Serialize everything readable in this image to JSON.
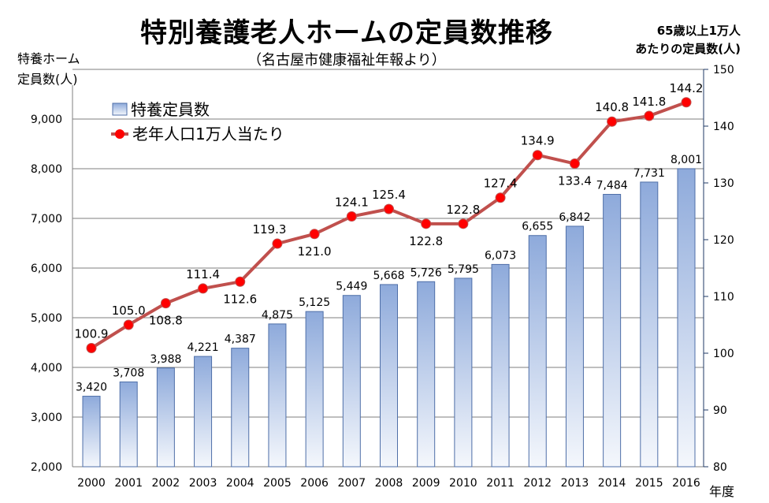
{
  "chart_data": {
    "type": "bar+line",
    "title": "特別養護老人ホームの定員数推移",
    "subtitle": "（名古屋市健康福祉年報より）",
    "ylabel_left": [
      "特養ホーム",
      "定員数(人)"
    ],
    "ylabel_right": [
      "65歳以上1万人",
      "あたりの定員数(人)"
    ],
    "xlabel": "年度",
    "categories": [
      "2000",
      "2001",
      "2002",
      "2003",
      "2004",
      "2005",
      "2006",
      "2007",
      "2008",
      "2009",
      "2010",
      "2011",
      "2012",
      "2013",
      "2014",
      "2015",
      "2016"
    ],
    "series": [
      {
        "name": "特養定員数",
        "type": "bar",
        "axis": "left",
        "values": [
          3420,
          3708,
          3988,
          4221,
          4387,
          4875,
          5125,
          5449,
          5668,
          5726,
          5795,
          6073,
          6655,
          6842,
          7484,
          7731,
          8001
        ],
        "labels": [
          "3,420",
          "3,708",
          "3,988",
          "4,221",
          "4,387",
          "4,875",
          "5,125",
          "5,449",
          "5,668",
          "5,726",
          "5,795",
          "6,073",
          "6,655",
          "6,842",
          "7,484",
          "7,731",
          "8,001"
        ]
      },
      {
        "name": "老年人口1万人当たり",
        "type": "line",
        "axis": "right",
        "values": [
          100.9,
          105.0,
          108.8,
          111.4,
          112.6,
          119.3,
          121.0,
          124.1,
          125.4,
          122.8,
          122.8,
          127.4,
          134.9,
          133.4,
          140.8,
          141.8,
          144.2
        ],
        "labels": [
          "100.9",
          "105.0",
          "108.8",
          "111.4",
          "112.6",
          "119.3",
          "121.0",
          "124.1",
          "125.4",
          "122.8",
          "122.8",
          "127.4",
          "134.9",
          "133.4",
          "140.8",
          "141.8",
          "144.2"
        ]
      }
    ],
    "ylim_left": [
      2000,
      10000
    ],
    "yticks_left": [
      "2,000",
      "3,000",
      "4,000",
      "5,000",
      "6,000",
      "7,000",
      "8,000",
      "9,000"
    ],
    "ylim_right": [
      80,
      150
    ],
    "yticks_right": [
      "80",
      "90",
      "100",
      "110",
      "120",
      "130",
      "140",
      "150"
    ],
    "grid": true,
    "legend": "top-left",
    "colors": {
      "bar_top": "#8eaadb",
      "bar_bottom": "#f4f7fc",
      "bar_border": "#4f6fa8",
      "line": "#c0504d",
      "marker": "#ff0000",
      "grid": "#7f7f7f"
    }
  }
}
